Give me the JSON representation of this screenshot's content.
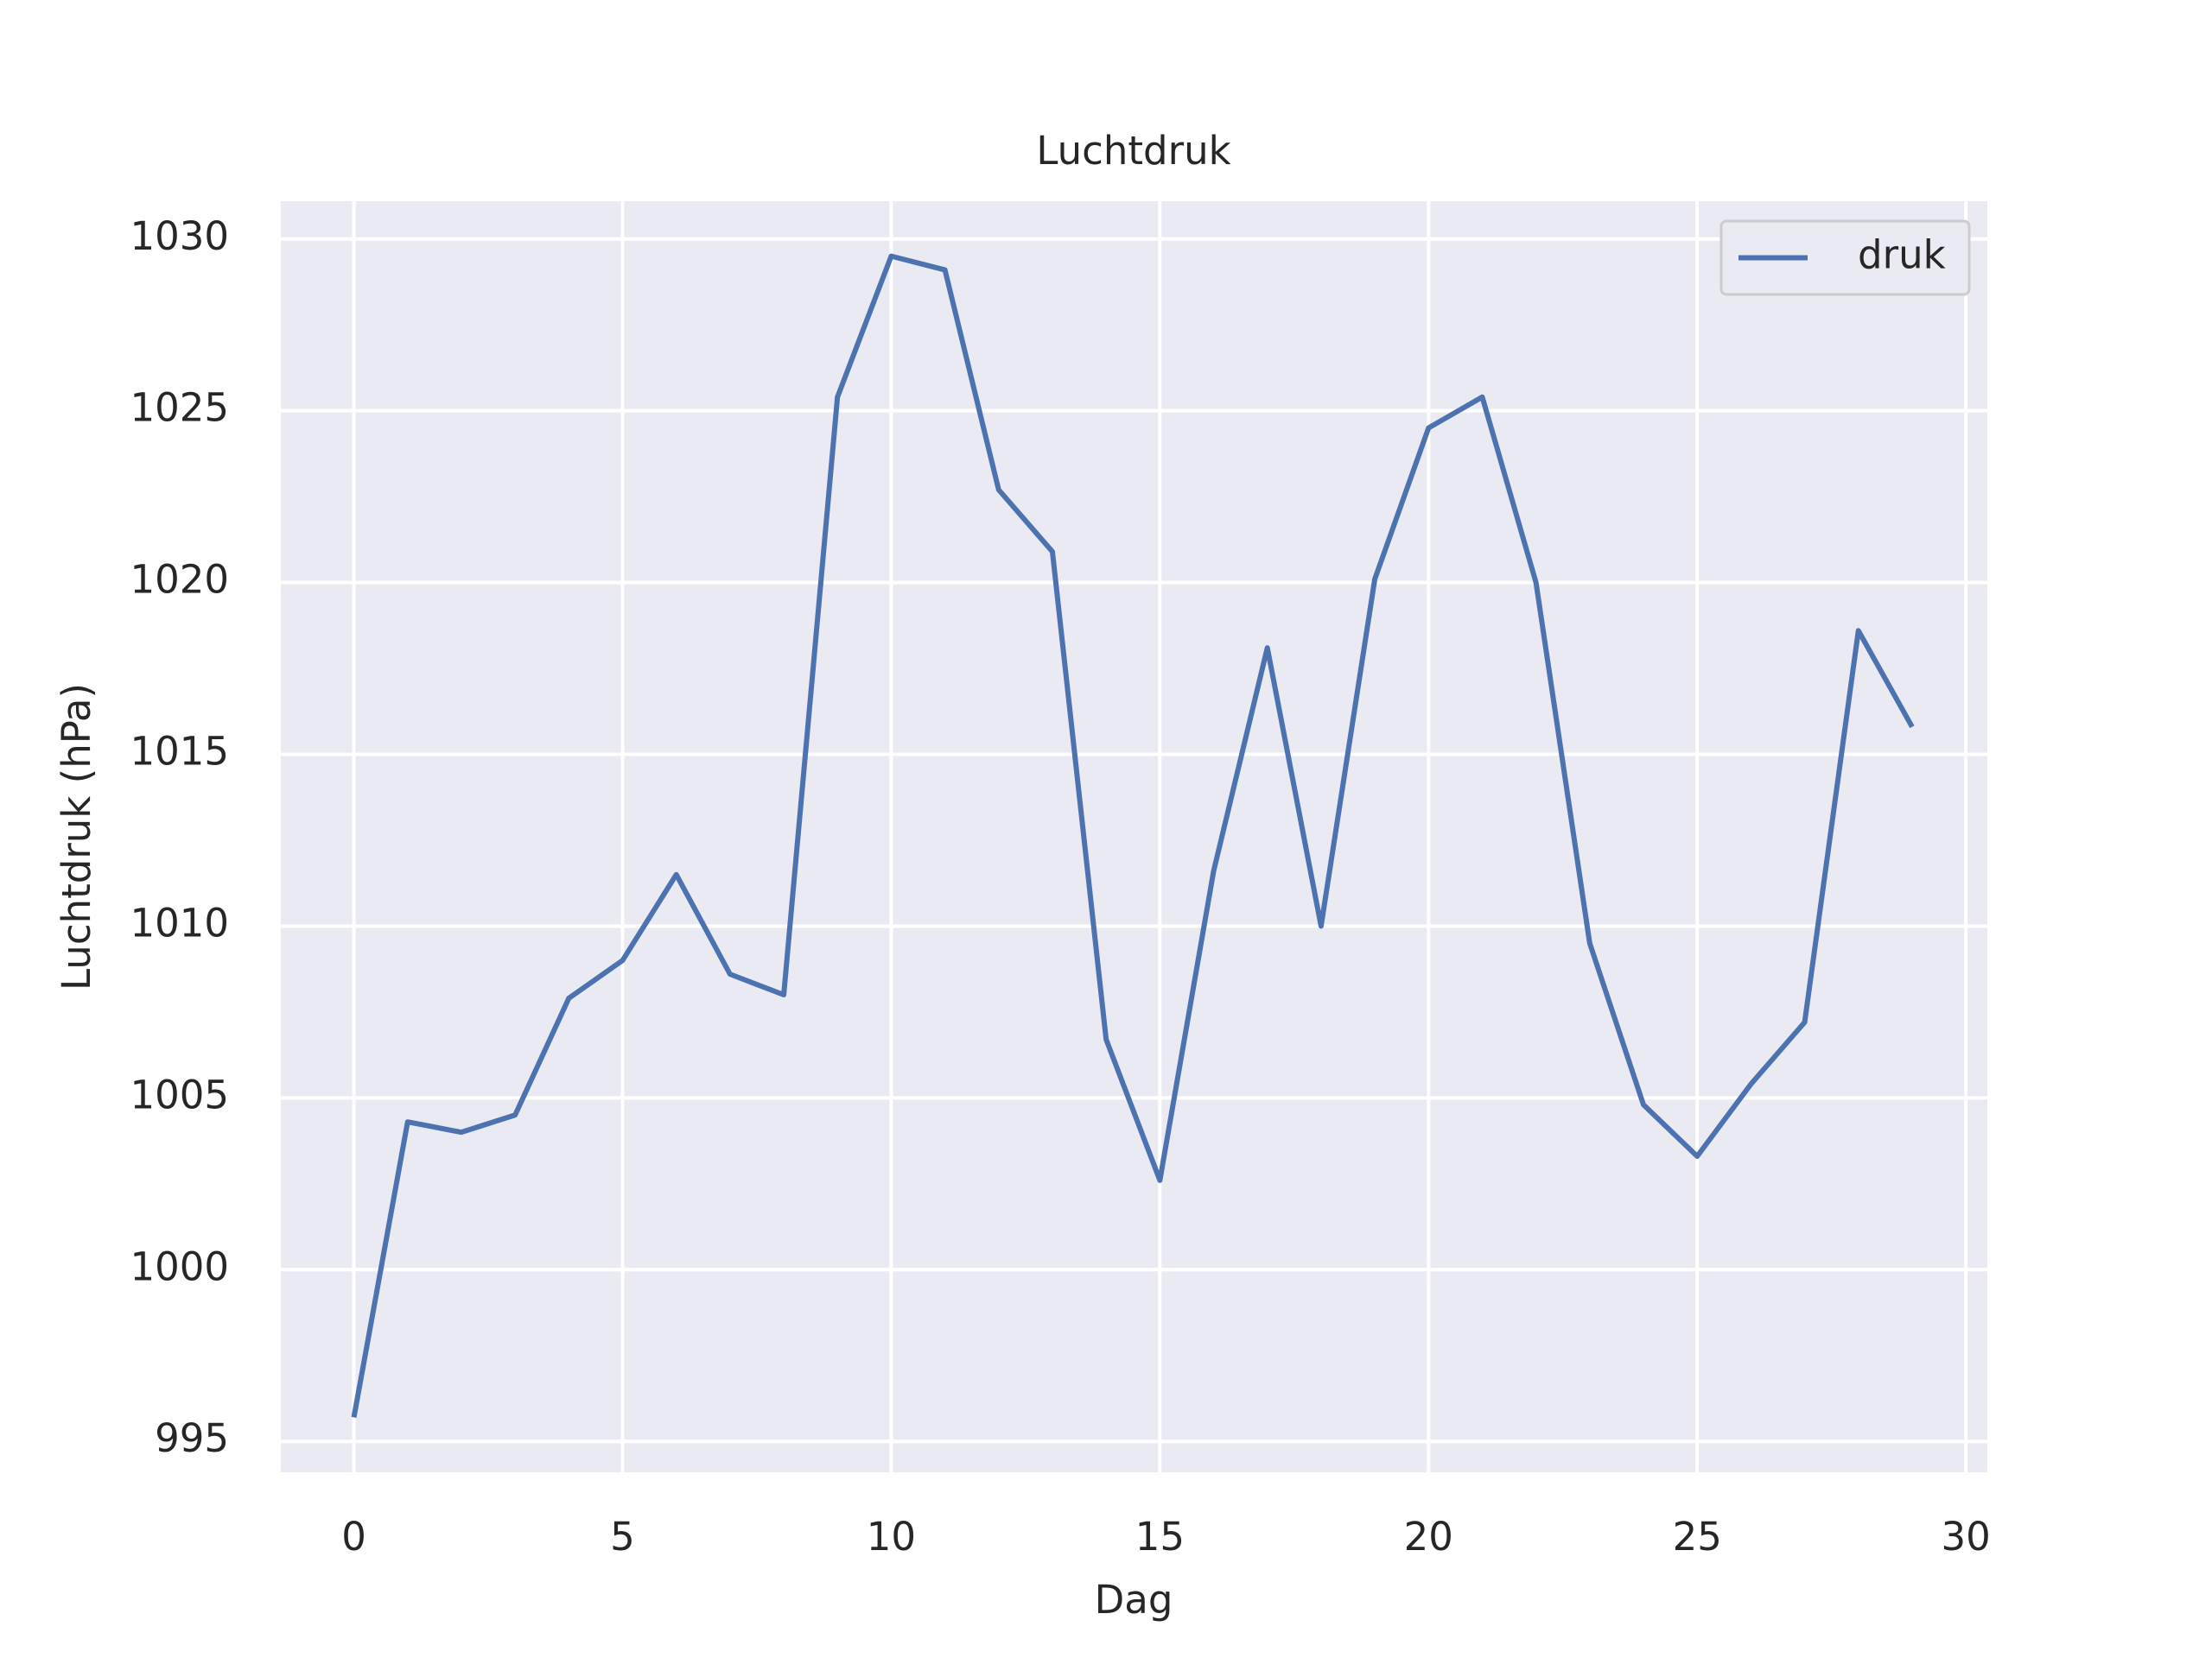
{
  "chart_data": {
    "type": "line",
    "title": "Luchtdruk",
    "x_label": "Dag",
    "y_label": "Luchtdruk (hPa)",
    "x": [
      0,
      1,
      2,
      3,
      4,
      5,
      6,
      7,
      8,
      9,
      10,
      11,
      12,
      13,
      14,
      15,
      16,
      17,
      18,
      19,
      20,
      21,
      22,
      23,
      24,
      25,
      26,
      27,
      28,
      29
    ],
    "series": [
      {
        "name": "druk",
        "color": "#4c72b0",
        "values": [
          995.7,
          1004.3,
          1004.0,
          1004.5,
          1007.9,
          1009.0,
          1011.5,
          1008.6,
          1008.0,
          1025.4,
          1029.5,
          1029.1,
          1022.7,
          1020.9,
          1006.7,
          1002.6,
          1011.6,
          1018.1,
          1010.0,
          1020.1,
          1024.5,
          1025.4,
          1020.0,
          1009.5,
          1004.8,
          1003.3,
          1005.4,
          1007.2,
          1018.6,
          1015.8
        ]
      }
    ],
    "xlim": [
      -1.36,
      30.4
    ],
    "xticks": [
      0,
      5,
      10,
      15,
      20,
      25,
      30
    ],
    "ylim": [
      994.1,
      1031.1
    ],
    "yticks": [
      995,
      1000,
      1005,
      1010,
      1015,
      1020,
      1025,
      1030
    ],
    "grid": true,
    "legend": "upper right",
    "background": "#eaeaf2"
  }
}
